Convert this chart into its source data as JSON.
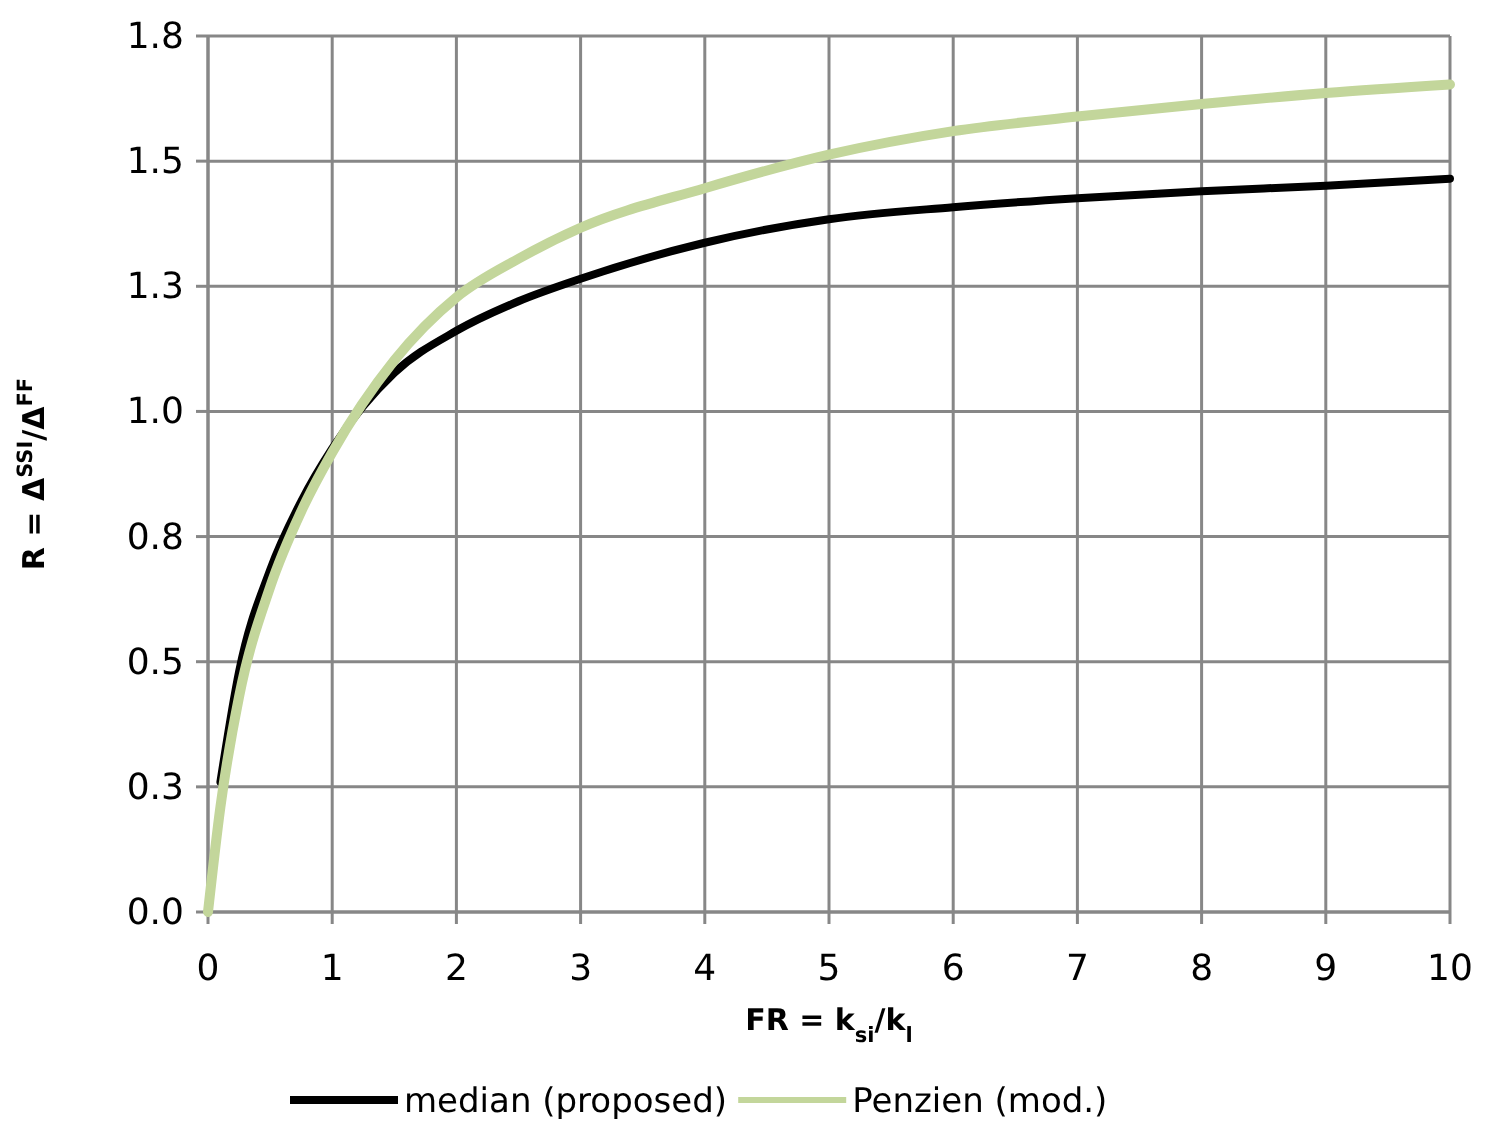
{
  "chart_data": {
    "type": "line",
    "xlabel": "FR = k$_{si}$/k$_{l}$",
    "ylabel": "R = Δ$^{SSI}$/Δ$^{FF}$",
    "xlim": [
      0,
      10
    ],
    "xticks": [
      0,
      1,
      2,
      3,
      4,
      5,
      6,
      7,
      8,
      9,
      10
    ],
    "ylim": [
      0,
      1.75
    ],
    "yticks": [
      {
        "value": 0,
        "label": "0.0"
      },
      {
        "value": 0.25,
        "label": "0.3"
      },
      0.5,
      {
        "value": 0.75,
        "label": "0.8"
      },
      {
        "value": 1,
        "label": "1.0"
      },
      {
        "value": 1.25,
        "label": "1.3"
      },
      1.5,
      {
        "value": 1.75,
        "label": "1.8"
      }
    ],
    "grid": true,
    "legend": "bottom",
    "marker": "none",
    "line_style": "solid",
    "x": [
      0,
      0.1,
      0.25,
      0.5,
      0.75,
      1,
      1.5,
      2,
      2.5,
      3,
      4,
      5,
      6,
      7,
      8,
      9,
      10
    ],
    "series": [
      {
        "name": "median (proposed)",
        "color": "#000000",
        "values": [
          null,
          0.26,
          0.48,
          0.683,
          0.82,
          0.926,
          1.077,
          1.161,
          1.22,
          1.265,
          1.337,
          1.384,
          1.408,
          1.426,
          1.44,
          1.451,
          1.465
        ]
      },
      {
        "name": "Penzien (mod.)",
        "color": "#c3d69b",
        "values": [
          0,
          0.21,
          0.43,
          0.649,
          0.8,
          0.918,
          1.102,
          1.228,
          1.305,
          1.367,
          1.446,
          1.513,
          1.56,
          1.589,
          1.614,
          1.636,
          1.653
        ]
      }
    ]
  }
}
